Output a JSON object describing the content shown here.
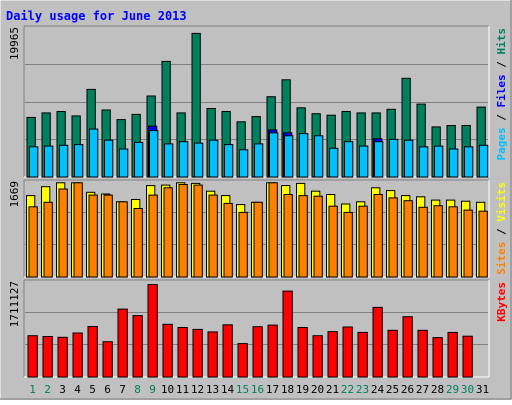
{
  "chart_data": [
    {
      "type": "bar",
      "title": "Daily usage for June 2013",
      "categories": [
        "1",
        "2",
        "3",
        "4",
        "5",
        "6",
        "7",
        "8",
        "9",
        "10",
        "11",
        "12",
        "13",
        "14",
        "15",
        "16",
        "17",
        "18",
        "19",
        "20",
        "21",
        "22",
        "23",
        "24",
        "25",
        "26",
        "27",
        "28",
        "29",
        "30",
        "31"
      ],
      "weekend_days": [
        "1",
        "2",
        "8",
        "9",
        "15",
        "16",
        "22",
        "23",
        "29",
        "30"
      ],
      "panels": [
        {
          "name": "pages-files-hits",
          "ymax": 19965,
          "ymax_label": "19965",
          "ylabel_parts": [
            "Pages",
            "Files",
            "Hits"
          ],
          "series": [
            {
              "name": "Hits",
              "color": "#00805c",
              "values": [
                8100,
                8700,
                8900,
                8300,
                11900,
                9100,
                7800,
                8500,
                11000,
                15700,
                8700,
                19500,
                9300,
                8900,
                7500,
                8200,
                10900,
                13200,
                9400,
                8600,
                8400,
                8900,
                8700,
                8700,
                9200,
                13400,
                9900,
                6800,
                7000,
                7000,
                9500
              ]
            },
            {
              "name": "Files",
              "color": "#0000ff",
              "values": [
                0,
                0,
                0,
                0,
                0,
                0,
                0,
                0,
                6900,
                0,
                0,
                0,
                0,
                0,
                0,
                0,
                6400,
                6000,
                0,
                0,
                0,
                0,
                0,
                5200,
                0,
                0,
                0,
                0,
                0,
                0,
                0
              ]
            },
            {
              "name": "Pages",
              "color": "#00c0ff",
              "values": [
                4100,
                4200,
                4300,
                4400,
                6500,
                5000,
                3800,
                4700,
                6300,
                4500,
                4800,
                4600,
                5000,
                4400,
                3700,
                4500,
                6000,
                5600,
                5900,
                5600,
                3900,
                4800,
                4200,
                4800,
                5100,
                5000,
                4100,
                4200,
                3800,
                4100,
                4300
              ]
            }
          ]
        },
        {
          "name": "visits-sites",
          "ymax": 1669,
          "ymax_label": "1669",
          "ylabel_parts": [
            "Sites",
            "Visits"
          ],
          "series": [
            {
              "name": "Visits",
              "color": "#ffff00",
              "values": [
                1460,
                1620,
                1690,
                1690,
                1520,
                1490,
                1350,
                1390,
                1640,
                1650,
                1690,
                1680,
                1540,
                1460,
                1300,
                1340,
                1690,
                1640,
                1680,
                1540,
                1480,
                1310,
                1350,
                1600,
                1550,
                1460,
                1440,
                1380,
                1380,
                1360,
                1340
              ]
            },
            {
              "name": "Sites",
              "color": "#ff8000",
              "values": [
                1260,
                1340,
                1580,
                1690,
                1470,
                1470,
                1350,
                1230,
                1470,
                1600,
                1660,
                1650,
                1470,
                1320,
                1160,
                1340,
                1690,
                1480,
                1460,
                1450,
                1270,
                1160,
                1270,
                1480,
                1420,
                1370,
                1250,
                1280,
                1260,
                1200,
                1180
              ]
            }
          ]
        },
        {
          "name": "kbytes",
          "ymax": 1711127,
          "ymax_label": "1711127",
          "ylabel_parts": [
            "KBytes"
          ],
          "series": [
            {
              "name": "KBytes",
              "color": "#ff0000",
              "values": [
                760000,
                745000,
                730000,
                810000,
                930000,
                650000,
                1250000,
                1130000,
                1700000,
                970000,
                910000,
                875000,
                830000,
                960000,
                615000,
                925000,
                955000,
                1580000,
                910000,
                760000,
                835000,
                920000,
                820000,
                1280000,
                860000,
                1110000,
                860000,
                725000,
                820000,
                750000,
                0
              ]
            }
          ]
        }
      ]
    }
  ],
  "colors": {
    "background": "#c0c0c0",
    "frame_dark": "#808080",
    "title": "#0000ff",
    "weekday_label": "#000000",
    "weekend_label": "#00805c",
    "separator": "#000000"
  }
}
